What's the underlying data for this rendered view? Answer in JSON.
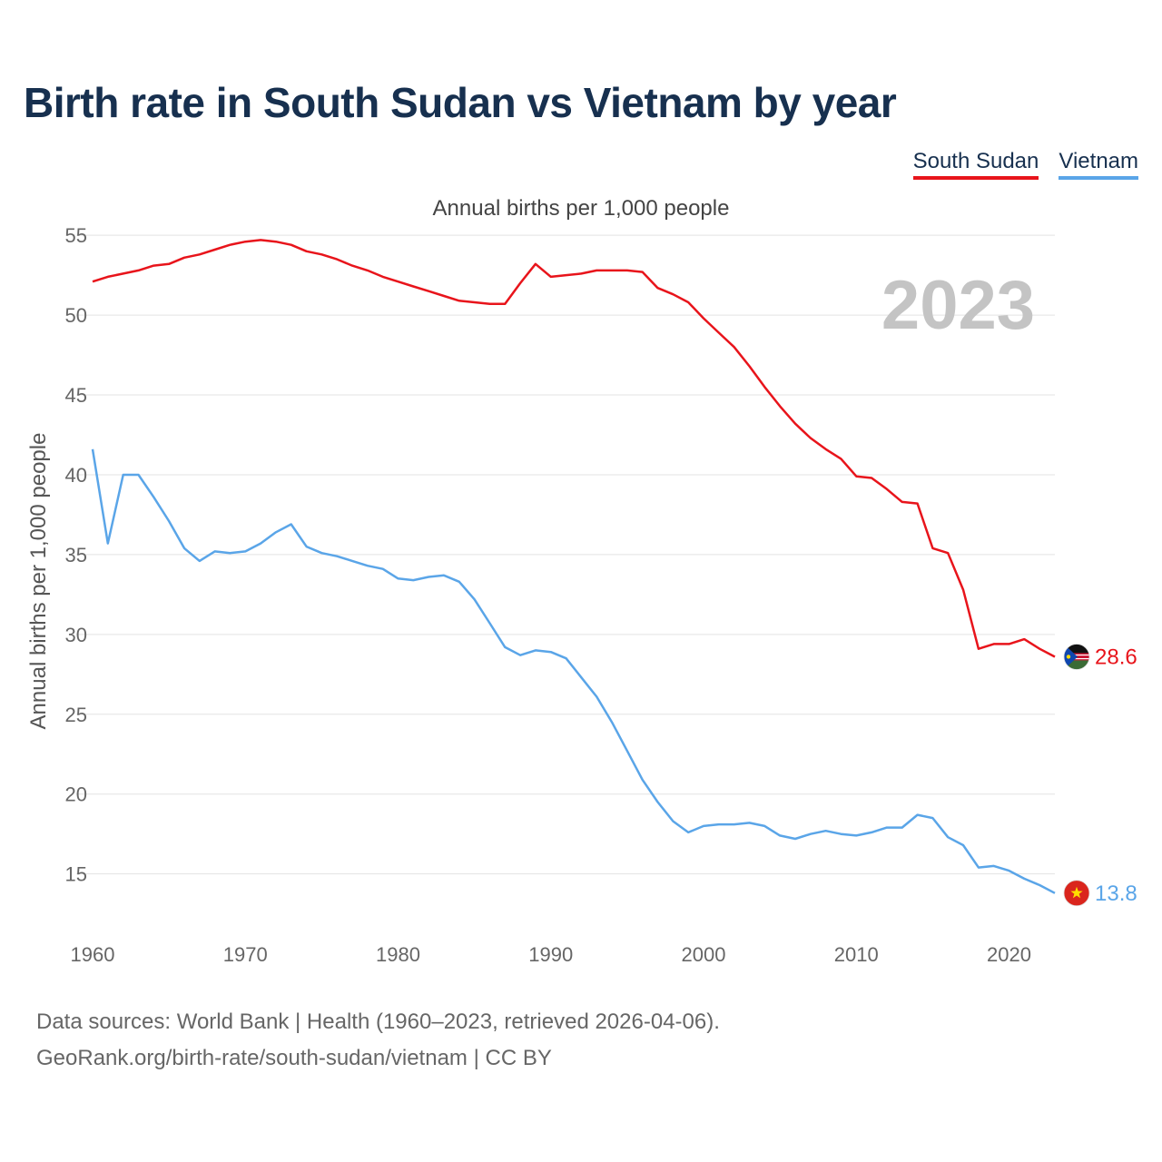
{
  "header": {
    "title": "Birth rate in South Sudan vs Vietnam by year",
    "subtitle": "Annual births per 1,000 people"
  },
  "legend": {
    "items": [
      {
        "label": "South Sudan",
        "color": "#e8141b"
      },
      {
        "label": "Vietnam",
        "color": "#5aa5e8"
      }
    ]
  },
  "footer": {
    "source_line1": "Data sources: World Bank | Health (1960–2023, retrieved 2026-04-06).",
    "source_line2": "GeoRank.org/birth-rate/south-sudan/vietnam | CC BY"
  },
  "chart_data": {
    "type": "line",
    "title": "Birth rate in South Sudan vs Vietnam by year",
    "subtitle": "Annual births per 1,000 people",
    "xlabel": "",
    "ylabel": "Annual births per 1,000 people",
    "year_label": "2023",
    "xlim": [
      1960,
      2023
    ],
    "ylim": [
      11,
      57
    ],
    "xticks": [
      1960,
      1970,
      1980,
      1990,
      2000,
      2010,
      2020
    ],
    "yticks": [
      15,
      20,
      25,
      30,
      35,
      40,
      45,
      50,
      55
    ],
    "grid": true,
    "legend_position": "top-right",
    "x": [
      1960,
      1961,
      1962,
      1963,
      1964,
      1965,
      1966,
      1967,
      1968,
      1969,
      1970,
      1971,
      1972,
      1973,
      1974,
      1975,
      1976,
      1977,
      1978,
      1979,
      1980,
      1981,
      1982,
      1983,
      1984,
      1985,
      1986,
      1987,
      1988,
      1989,
      1990,
      1991,
      1992,
      1993,
      1994,
      1995,
      1996,
      1997,
      1998,
      1999,
      2000,
      2001,
      2002,
      2003,
      2004,
      2005,
      2006,
      2007,
      2008,
      2009,
      2010,
      2011,
      2012,
      2013,
      2014,
      2015,
      2016,
      2017,
      2018,
      2019,
      2020,
      2021,
      2022,
      2023
    ],
    "series": [
      {
        "name": "South Sudan",
        "color": "#e8141b",
        "end_label": "28.6",
        "values": [
          52.1,
          52.4,
          52.6,
          52.8,
          53.1,
          53.2,
          53.6,
          53.8,
          54.1,
          54.4,
          54.6,
          54.7,
          54.6,
          54.4,
          54.0,
          53.8,
          53.5,
          53.1,
          52.8,
          52.4,
          52.1,
          51.8,
          51.5,
          51.2,
          50.9,
          50.8,
          50.7,
          50.7,
          52.0,
          53.2,
          52.4,
          52.5,
          52.6,
          52.8,
          52.8,
          52.8,
          52.7,
          51.7,
          51.3,
          50.8,
          49.8,
          48.9,
          48.0,
          46.8,
          45.5,
          44.3,
          43.2,
          42.3,
          41.6,
          41.0,
          39.9,
          39.8,
          39.1,
          38.3,
          38.2,
          35.4,
          35.1,
          32.8,
          29.1,
          29.4,
          29.4,
          29.7,
          29.1,
          28.6
        ]
      },
      {
        "name": "Vietnam",
        "color": "#5aa5e8",
        "end_label": "13.8",
        "values": [
          41.6,
          35.7,
          40.0,
          40.0,
          38.6,
          37.1,
          35.4,
          34.6,
          35.2,
          35.1,
          35.2,
          35.7,
          36.4,
          36.9,
          35.5,
          35.1,
          34.9,
          34.6,
          34.3,
          34.1,
          33.5,
          33.4,
          33.6,
          33.7,
          33.3,
          32.2,
          30.7,
          29.2,
          28.7,
          29.0,
          28.9,
          28.5,
          27.3,
          26.1,
          24.5,
          22.7,
          20.9,
          19.5,
          18.3,
          17.6,
          18.0,
          18.1,
          18.1,
          18.2,
          18.0,
          17.4,
          17.2,
          17.5,
          17.7,
          17.5,
          17.4,
          17.6,
          17.9,
          17.9,
          18.7,
          18.5,
          17.3,
          16.8,
          15.4,
          15.5,
          15.2,
          14.7,
          14.3,
          13.8
        ]
      }
    ]
  }
}
